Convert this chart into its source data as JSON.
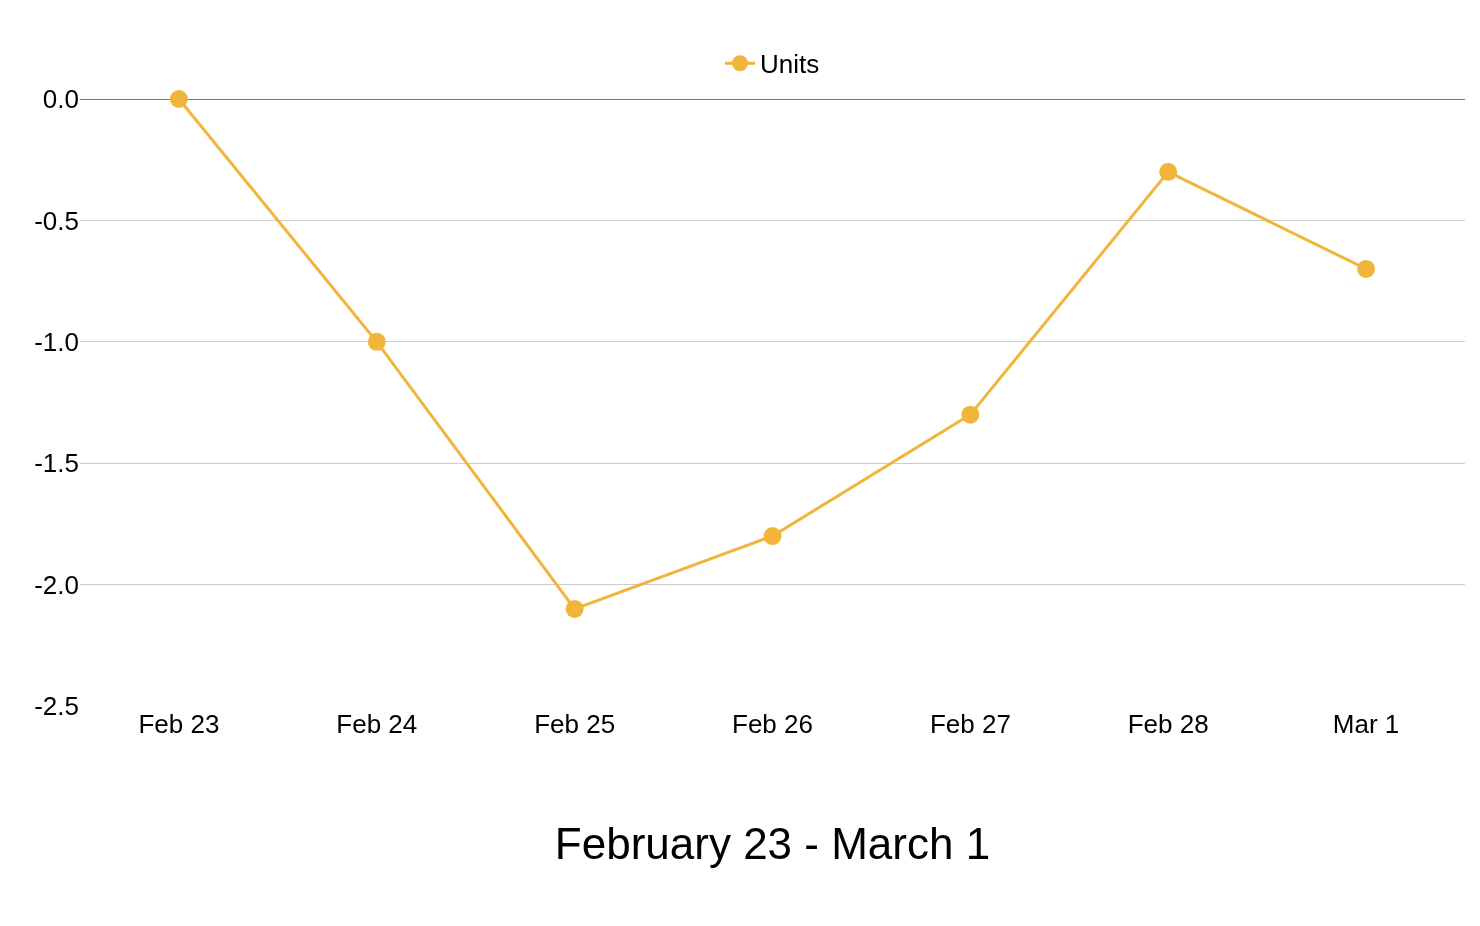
{
  "chart_data": {
    "type": "line",
    "xlabel": "February 23 - March 1",
    "categories": [
      "Feb 23",
      "Feb 24",
      "Feb 25",
      "Feb 26",
      "Feb 27",
      "Feb 28",
      "Mar 1"
    ],
    "series": [
      {
        "name": "Units",
        "color": "#f2b53c",
        "values": [
          0,
          -1,
          -2.1,
          -1.8,
          -1.3,
          -0.3,
          -0.7
        ]
      }
    ],
    "ylim": [
      -2.5,
      0
    ],
    "yticks": [
      {
        "value": 0,
        "label": "0.0"
      },
      {
        "value": -0.5,
        "label": "-0.5"
      },
      {
        "value": -1,
        "label": "-1.0"
      },
      {
        "value": -1.5,
        "label": "-1.5"
      },
      {
        "value": -2,
        "label": "-2.0"
      },
      {
        "value": -2.5,
        "label": "-2.5"
      }
    ],
    "grid": "y",
    "legend": "top",
    "marker": "circle",
    "line_style": "solid"
  }
}
